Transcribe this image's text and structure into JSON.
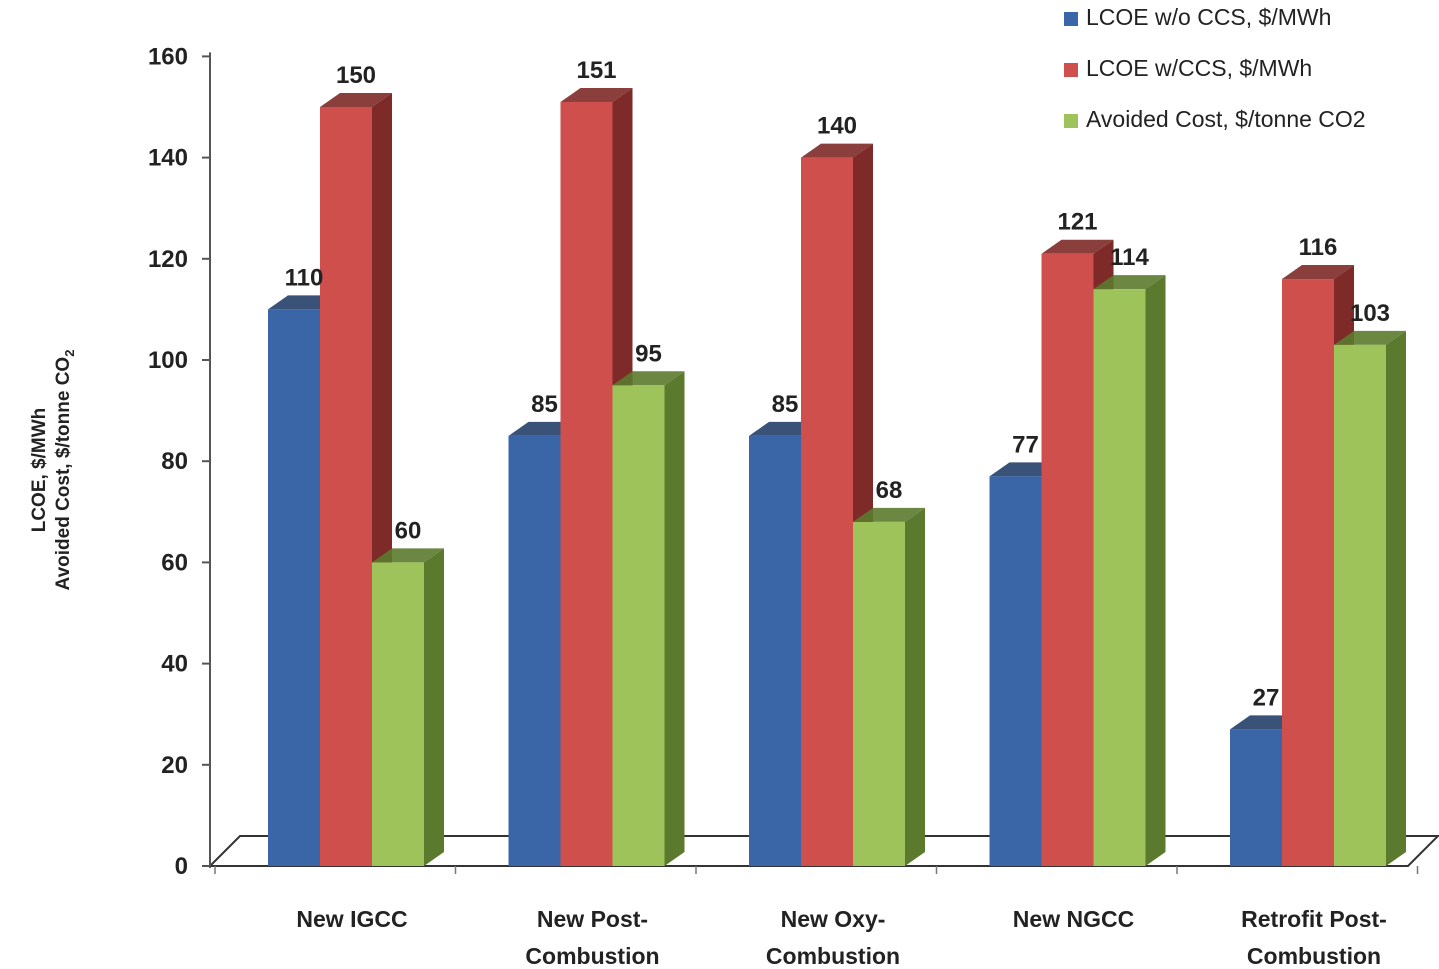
{
  "chart_data": {
    "type": "bar",
    "categories": [
      [
        "New IGCC"
      ],
      [
        "New Post-",
        "Combustion"
      ],
      [
        "New Oxy-",
        "Combustion"
      ],
      [
        "New NGCC"
      ],
      [
        "Retrofit Post-",
        "Combustion"
      ]
    ],
    "series": [
      {
        "name": "LCOE w/o CCS, $/MWh",
        "values": [
          110,
          85,
          85,
          77,
          27
        ],
        "color": "#3a66a8",
        "side_color": "#253f68"
      },
      {
        "name": "LCOE w/CCS, $/MWh",
        "values": [
          150,
          151,
          140,
          121,
          116
        ],
        "color": "#cf4f4c",
        "side_color": "#7e2a28"
      },
      {
        "name": "Avoided Cost, $/tonne CO2",
        "values": [
          60,
          95,
          68,
          114,
          103
        ],
        "color": "#9dc35a",
        "side_color": "#5b7a2e"
      }
    ],
    "data_labels": [
      [
        "110",
        "85",
        "85",
        "77",
        "27"
      ],
      [
        "150",
        "151",
        "140",
        "121",
        "116"
      ],
      [
        "60",
        "95",
        "68",
        "114",
        "103"
      ]
    ],
    "ylabel_lines": [
      "LCOE, $/MWh",
      "Avoided Cost, $/tonne CO",
      "2"
    ],
    "ylim": [
      0,
      160
    ],
    "yticks": [
      "0",
      "20",
      "40",
      "60",
      "80",
      "100",
      "120",
      "140",
      "160"
    ],
    "grid": false,
    "legend_position": "top-right",
    "style": "3d-clustered-column"
  }
}
